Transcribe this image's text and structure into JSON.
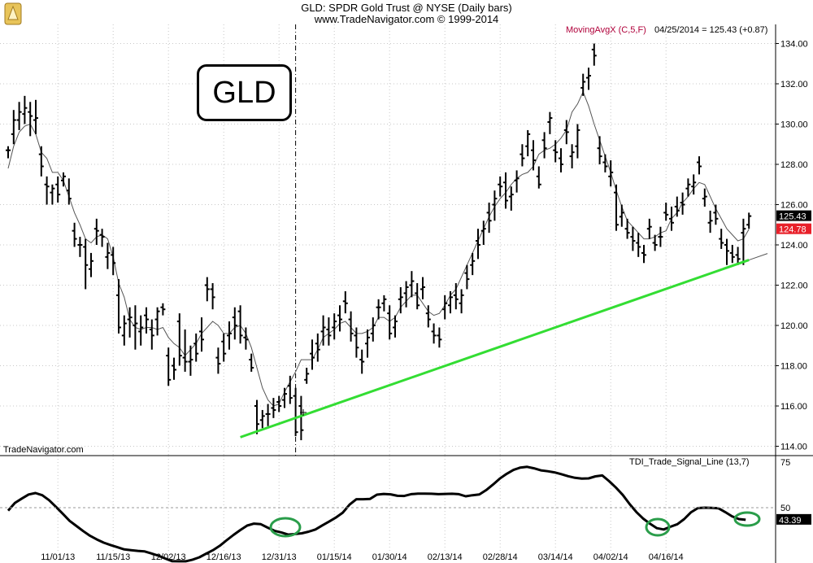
{
  "header": {
    "title": "GLD:  SPDR Gold Trust @ NYSE  (Daily bars)",
    "subtitle": "www.TradeNavigator.com © 1999-2014"
  },
  "logo_text": "GLD",
  "watermark": "TradeNavigator.com",
  "moving_average": {
    "label": "MovingAvgX (C,5,F)",
    "readout": "04/25/2014 = 125.43 (+0.87)"
  },
  "indicator": {
    "label": "TDI_Trade_Signal_Line (13,7)"
  },
  "colors": {
    "trendline": "#33dd33",
    "circle": "#2a9d4a",
    "ma_label": "#b0003a",
    "last_price_bg": "#000000",
    "ma_price_bg": "#e8202a"
  },
  "chart_data": [
    {
      "type": "ohlc",
      "ylim": [
        114,
        134.5
      ],
      "yticks": [
        "114.00",
        "116.00",
        "118.00",
        "120.00",
        "122.00",
        "124.00",
        "126.00",
        "128.00",
        "130.00",
        "132.00",
        "134.00"
      ],
      "ytick_values": [
        114,
        116,
        118,
        120,
        122,
        124,
        126,
        128,
        130,
        132,
        134
      ],
      "xtick_labels": [
        "11/01/13",
        "11/15/13",
        "12/02/13",
        "12/16/13",
        "12/31/13",
        "01/15/14",
        "01/30/14",
        "02/13/14",
        "02/28/14",
        "03/14/14",
        "04/02/14",
        "04/16/14"
      ],
      "xtick_index": [
        9,
        19,
        29,
        39,
        49,
        59,
        69,
        79,
        89,
        99,
        109,
        119
      ],
      "price_tags": [
        {
          "text": "125.43",
          "value": 125.43,
          "style": "last"
        },
        {
          "text": "124.78",
          "value": 124.78,
          "style": "ma"
        }
      ],
      "bars": [
        [
          128.7,
          128.9,
          128.3,
          128.7
        ],
        [
          129.5,
          130.7,
          129.0,
          130.2
        ],
        [
          130.2,
          131.1,
          129.7,
          130.6
        ],
        [
          130.5,
          131.4,
          130.0,
          130.8
        ],
        [
          130.6,
          131.1,
          129.4,
          130.4
        ],
        [
          130.2,
          131.2,
          129.5,
          130.3
        ],
        [
          128.5,
          128.9,
          127.4,
          127.9
        ],
        [
          127.0,
          127.4,
          126.0,
          126.9
        ],
        [
          126.6,
          127.0,
          126.0,
          126.8
        ],
        [
          127.0,
          127.4,
          126.1,
          126.5
        ],
        [
          127.2,
          127.6,
          126.9,
          127.4
        ],
        [
          126.7,
          127.3,
          126.0,
          126.3
        ],
        [
          124.7,
          125.1,
          123.9,
          124.3
        ],
        [
          124.0,
          124.4,
          123.4,
          124.0
        ],
        [
          123.9,
          124.3,
          121.8,
          123.0
        ],
        [
          122.8,
          123.6,
          122.4,
          123.2
        ],
        [
          124.8,
          125.3,
          124.0,
          124.7
        ],
        [
          124.5,
          124.8,
          123.9,
          124.4
        ],
        [
          123.4,
          124.1,
          122.8,
          123.6
        ],
        [
          123.5,
          123.9,
          122.5,
          123.1
        ],
        [
          121.5,
          122.3,
          119.6,
          119.9
        ],
        [
          119.5,
          120.5,
          119.0,
          120.1
        ],
        [
          120.3,
          120.9,
          119.4,
          120.4
        ],
        [
          120.0,
          121.0,
          118.8,
          120.1
        ],
        [
          119.7,
          120.5,
          119.0,
          119.9
        ],
        [
          120.5,
          120.9,
          119.6,
          120.3
        ],
        [
          119.8,
          120.3,
          118.8,
          119.5
        ],
        [
          120.3,
          120.9,
          119.5,
          120.7
        ],
        [
          120.9,
          121.1,
          120.5,
          120.8
        ],
        [
          118.5,
          118.9,
          117.0,
          117.3
        ],
        [
          118.0,
          118.4,
          117.3,
          117.8
        ],
        [
          120.2,
          120.6,
          118.0,
          118.5
        ],
        [
          118.4,
          119.8,
          117.7,
          118.2
        ],
        [
          118.2,
          119.0,
          117.5,
          118.3
        ],
        [
          119.1,
          119.6,
          118.2,
          118.6
        ],
        [
          119.7,
          120.4,
          118.7,
          119.3
        ],
        [
          122.0,
          122.4,
          121.2,
          121.8
        ],
        [
          121.8,
          122.1,
          120.8,
          121.4
        ],
        [
          118.4,
          118.9,
          117.6,
          118.1
        ],
        [
          119.2,
          119.6,
          118.2,
          118.6
        ],
        [
          119.5,
          120.2,
          118.8,
          119.6
        ],
        [
          120.4,
          120.9,
          119.3,
          120.0
        ],
        [
          120.7,
          121.0,
          119.1,
          119.5
        ],
        [
          119.4,
          119.9,
          118.8,
          119.3
        ],
        [
          118.3,
          118.6,
          117.7,
          117.9
        ],
        [
          116.0,
          116.3,
          114.6,
          115.1
        ],
        [
          115.3,
          115.8,
          114.9,
          115.5
        ],
        [
          115.6,
          116.1,
          115.0,
          115.6
        ],
        [
          115.9,
          116.4,
          115.4,
          115.8
        ],
        [
          116.2,
          116.5,
          115.7,
          116.0
        ],
        [
          116.3,
          116.9,
          115.9,
          116.6
        ],
        [
          117.0,
          117.5,
          116.1,
          116.4
        ],
        [
          116.5,
          116.9,
          114.5,
          114.7
        ],
        [
          116.0,
          116.5,
          114.3,
          114.8
        ],
        [
          117.3,
          117.9,
          117.1,
          117.6
        ],
        [
          118.6,
          119.3,
          117.8,
          118.4
        ],
        [
          119.1,
          119.6,
          118.2,
          118.8
        ],
        [
          119.7,
          120.5,
          119.0,
          119.9
        ],
        [
          119.8,
          120.4,
          119.0,
          119.5
        ],
        [
          119.9,
          120.6,
          119.3,
          120.2
        ],
        [
          120.5,
          121.0,
          119.7,
          120.3
        ],
        [
          121.2,
          121.7,
          120.6,
          121.1
        ],
        [
          120.3,
          120.7,
          119.2,
          119.6
        ],
        [
          119.5,
          119.9,
          118.4,
          118.9
        ],
        [
          118.3,
          118.8,
          117.6,
          118.2
        ],
        [
          119.1,
          119.8,
          118.4,
          119.4
        ],
        [
          119.6,
          120.4,
          119.2,
          120.0
        ],
        [
          120.9,
          121.3,
          120.3,
          120.9
        ],
        [
          121.1,
          121.5,
          120.7,
          121.3
        ],
        [
          120.6,
          121.0,
          119.3,
          119.6
        ],
        [
          119.9,
          120.5,
          119.4,
          120.2
        ],
        [
          121.3,
          121.9,
          120.6,
          121.4
        ],
        [
          121.6,
          122.2,
          120.9,
          121.9
        ],
        [
          122.0,
          122.7,
          121.4,
          122.2
        ],
        [
          121.6,
          122.1,
          120.8,
          121.0
        ],
        [
          121.8,
          122.4,
          121.3,
          121.9
        ],
        [
          120.6,
          121.0,
          119.9,
          120.3
        ],
        [
          119.7,
          120.1,
          119.1,
          119.5
        ],
        [
          119.5,
          119.9,
          118.9,
          119.3
        ],
        [
          120.8,
          121.5,
          120.3,
          121.1
        ],
        [
          121.0,
          121.7,
          120.6,
          121.4
        ],
        [
          121.5,
          122.1,
          120.8,
          121.3
        ],
        [
          121.1,
          121.8,
          120.6,
          121.5
        ],
        [
          122.6,
          123.0,
          121.8,
          122.3
        ],
        [
          123.0,
          123.6,
          122.5,
          123.2
        ],
        [
          124.2,
          124.8,
          123.3,
          124.0
        ],
        [
          124.7,
          125.2,
          124.0,
          124.8
        ],
        [
          125.6,
          126.1,
          124.6,
          125.2
        ],
        [
          126.0,
          126.7,
          125.2,
          126.3
        ],
        [
          127.0,
          127.4,
          126.4,
          126.9
        ],
        [
          127.1,
          127.6,
          125.8,
          126.2
        ],
        [
          126.4,
          126.9,
          125.7,
          126.5
        ],
        [
          127.2,
          127.7,
          126.6,
          127.3
        ],
        [
          128.5,
          129.0,
          127.9,
          128.3
        ],
        [
          128.9,
          129.7,
          128.4,
          129.5
        ],
        [
          128.7,
          129.2,
          127.7,
          128.2
        ],
        [
          127.4,
          127.9,
          126.8,
          127.0
        ],
        [
          129.2,
          129.6,
          128.3,
          128.8
        ],
        [
          130.1,
          130.6,
          129.5,
          130.3
        ],
        [
          128.7,
          129.2,
          128.1,
          128.6
        ],
        [
          128.3,
          128.8,
          127.6,
          128.0
        ],
        [
          129.7,
          130.2,
          129.0,
          129.6
        ],
        [
          128.4,
          129.0,
          127.8,
          128.6
        ],
        [
          128.9,
          130.0,
          128.3,
          129.7
        ],
        [
          131.8,
          132.5,
          131.4,
          132.1
        ],
        [
          132.3,
          132.8,
          131.7,
          132.4
        ],
        [
          133.7,
          134.0,
          132.9,
          133.4
        ],
        [
          128.8,
          129.4,
          128.0,
          128.4
        ],
        [
          128.1,
          128.5,
          127.6,
          127.9
        ],
        [
          127.4,
          128.2,
          126.9,
          127.6
        ],
        [
          126.6,
          127.0,
          124.7,
          125.0
        ],
        [
          125.4,
          126.0,
          124.9,
          125.6
        ],
        [
          124.8,
          125.3,
          124.3,
          124.6
        ],
        [
          124.4,
          124.9,
          123.7,
          124.2
        ],
        [
          124.1,
          124.6,
          123.4,
          123.9
        ],
        [
          123.6,
          124.0,
          123.1,
          123.5
        ],
        [
          124.8,
          125.3,
          124.3,
          124.9
        ],
        [
          124.1,
          124.5,
          123.7,
          124.0
        ],
        [
          124.4,
          124.9,
          123.9,
          124.4
        ],
        [
          125.6,
          126.1,
          125.2,
          125.5
        ],
        [
          125.3,
          125.9,
          124.7,
          125.1
        ],
        [
          125.9,
          126.4,
          125.4,
          125.7
        ],
        [
          126.1,
          126.6,
          125.5,
          126.0
        ],
        [
          126.8,
          127.3,
          126.4,
          127.0
        ],
        [
          126.9,
          127.5,
          126.5,
          127.1
        ],
        [
          128.1,
          128.4,
          127.5,
          127.9
        ],
        [
          126.3,
          126.8,
          125.9,
          126.4
        ],
        [
          125.1,
          125.7,
          124.6,
          125.2
        ],
        [
          125.6,
          126.0,
          125.0,
          125.3
        ],
        [
          124.3,
          124.8,
          123.8,
          124.1
        ],
        [
          124.0,
          124.3,
          123.0,
          123.7
        ],
        [
          123.6,
          124.0,
          123.1,
          123.4
        ],
        [
          123.5,
          123.9,
          123.0,
          123.3
        ],
        [
          124.6,
          125.3,
          123.0,
          124.8
        ],
        [
          125.0,
          125.6,
          124.8,
          125.43
        ]
      ],
      "moving_average": [
        127.8,
        128.9,
        129.6,
        129.9,
        130.0,
        129.5,
        128.6,
        128.3,
        127.6,
        127.6,
        127.2,
        126.4,
        125.6,
        125.0,
        124.3,
        124.1,
        124.4,
        124.5,
        124.3,
        123.4,
        122.1,
        121.4,
        120.3,
        119.9,
        119.8,
        119.9,
        119.9,
        119.8,
        119.9,
        119.4,
        119.1,
        118.9,
        118.5,
        118.8,
        119.1,
        119.6,
        119.9,
        120.2,
        120.0,
        119.6,
        119.6,
        119.9,
        120.0,
        119.6,
        118.9,
        117.9,
        116.9,
        116.3,
        116.0,
        116.1,
        116.7,
        117.2,
        117.7,
        118.3,
        118.3,
        118.3,
        118.8,
        119.4,
        119.6,
        119.8,
        120.1,
        120.2,
        119.9,
        119.6,
        119.6,
        119.7,
        119.9,
        120.4,
        120.4,
        120.2,
        120.4,
        120.9,
        121.2,
        121.5,
        121.5,
        121.1,
        120.7,
        120.5,
        120.6,
        121.0,
        121.5,
        121.8,
        122.4,
        123.0,
        123.6,
        124.2,
        124.8,
        125.4,
        125.9,
        126.3,
        126.6,
        127.0,
        127.3,
        127.5,
        127.6,
        127.9,
        128.5,
        128.7,
        128.8,
        129.0,
        129.3,
        129.7,
        130.6,
        131.0,
        131.6,
        130.9,
        130.0,
        129.2,
        128.4,
        127.6,
        126.7,
        125.9,
        125.2,
        124.9,
        124.6,
        124.3,
        124.3,
        124.4,
        124.6,
        124.7,
        125.3,
        125.6,
        126.1,
        126.4,
        126.8,
        127.1,
        127.0,
        126.4,
        125.8,
        125.3,
        124.8,
        124.5,
        124.2,
        124.3,
        124.78
      ],
      "trendline": {
        "start": [
          42,
          114.45
        ],
        "end": [
          134,
          123.25
        ]
      },
      "vline_index": 52
    },
    {
      "type": "line",
      "ylim": [
        15,
        80
      ],
      "yticks": [
        "75",
        "50"
      ],
      "ytick_values": [
        75,
        50
      ],
      "reference_line": 50,
      "last_value_tag": {
        "text": "43.39",
        "value": 43.39
      },
      "values": [
        48.4,
        52.6,
        55.0,
        57.2,
        58.0,
        56.8,
        54.1,
        50.5,
        46.7,
        42.8,
        40.0,
        37.2,
        34.6,
        32.6,
        30.9,
        29.6,
        28.4,
        27.2,
        26.8,
        26.4,
        26.1,
        25.0,
        23.8,
        22.2,
        20.8,
        20.7,
        20.7,
        21.6,
        22.9,
        24.9,
        26.8,
        29.2,
        32.2,
        35.1,
        37.8,
        40.2,
        41.3,
        41.0,
        39.1,
        37.4,
        36.5,
        35.3,
        35.6,
        36.0,
        36.9,
        38.1,
        40.3,
        42.4,
        44.6,
        47.3,
        51.7,
        54.6,
        54.6,
        54.8,
        57.1,
        57.5,
        57.3,
        56.5,
        56.4,
        57.4,
        57.7,
        57.7,
        57.6,
        57.4,
        57.5,
        57.6,
        57.4,
        56.2,
        56.8,
        57.2,
        59.6,
        62.6,
        65.9,
        68.5,
        70.6,
        71.9,
        72.3,
        71.5,
        70.4,
        69.9,
        69.3,
        68.3,
        67.2,
        66.3,
        65.9,
        66.0,
        67.1,
        67.6,
        64.5,
        61.0,
        57.0,
        52.0,
        47.6,
        44.0,
        41.2,
        38.8,
        38.1,
        39.6,
        41.0,
        43.8,
        47.5,
        49.8,
        50.0,
        49.9,
        49.7,
        47.6,
        45.3,
        43.8,
        43.39
      ]
    }
  ]
}
